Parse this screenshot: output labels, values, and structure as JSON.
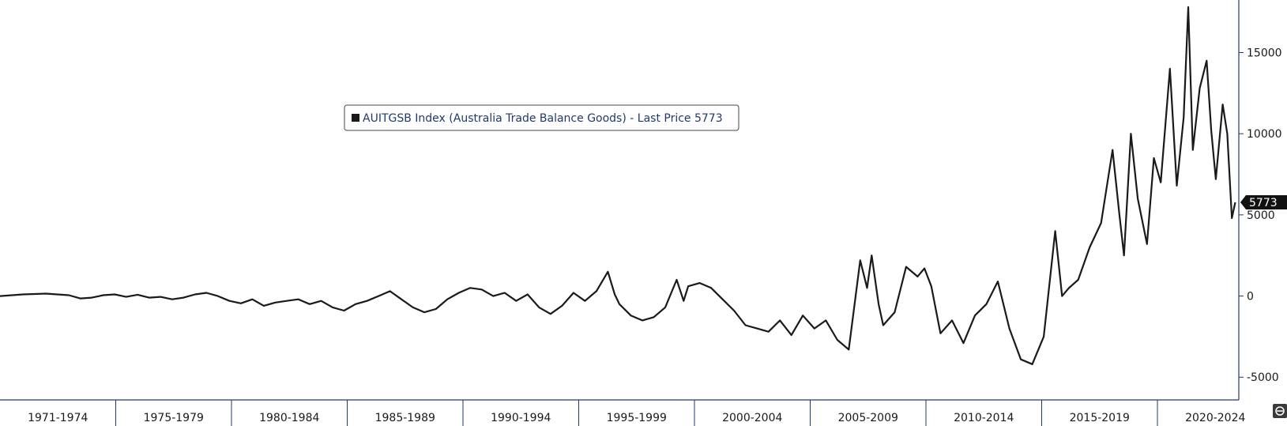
{
  "chart_data": {
    "type": "line",
    "legend": {
      "label": "AUITGSB Index (Australia Trade Balance Goods) - Last Price 5773",
      "placement": "top-center"
    },
    "last_price": 5773,
    "last_price_label": "5773",
    "line_color": "#1a1a1a",
    "accent_color": "#1f3a6b",
    "x_categories": [
      "1971-1974",
      "1975-1979",
      "1980-1984",
      "1985-1989",
      "1990-1994",
      "1995-1999",
      "2000-2004",
      "2005-2009",
      "2010-2014",
      "2015-2019",
      "2020-2024"
    ],
    "xlim": [
      1971.0,
      2024.9
    ],
    "y_ticks": [
      -5000,
      0,
      5000,
      10000,
      15000
    ],
    "y_tick_labels": [
      "-5000",
      "0",
      "5000",
      "10000",
      "15000"
    ],
    "ylim": [
      -6400,
      17800
    ],
    "grid": false,
    "series": [
      {
        "values": [
          [
            1971.0,
            0
          ],
          [
            1972.0,
            100
          ],
          [
            1973.0,
            150
          ],
          [
            1974.0,
            50
          ],
          [
            1974.5,
            -150
          ],
          [
            1975.0,
            -100
          ],
          [
            1975.5,
            50
          ],
          [
            1976.0,
            100
          ],
          [
            1976.5,
            -50
          ],
          [
            1977.0,
            80
          ],
          [
            1977.5,
            -100
          ],
          [
            1978.0,
            -50
          ],
          [
            1978.5,
            -200
          ],
          [
            1979.0,
            -100
          ],
          [
            1979.5,
            100
          ],
          [
            1980.0,
            200
          ],
          [
            1980.5,
            0
          ],
          [
            1981.0,
            -300
          ],
          [
            1981.5,
            -450
          ],
          [
            1982.0,
            -200
          ],
          [
            1982.5,
            -600
          ],
          [
            1983.0,
            -400
          ],
          [
            1983.5,
            -300
          ],
          [
            1984.0,
            -200
          ],
          [
            1984.5,
            -500
          ],
          [
            1985.0,
            -300
          ],
          [
            1985.5,
            -700
          ],
          [
            1986.0,
            -900
          ],
          [
            1986.5,
            -500
          ],
          [
            1987.0,
            -300
          ],
          [
            1987.5,
            0
          ],
          [
            1988.0,
            300
          ],
          [
            1988.5,
            -200
          ],
          [
            1989.0,
            -700
          ],
          [
            1989.5,
            -1000
          ],
          [
            1990.0,
            -800
          ],
          [
            1990.5,
            -200
          ],
          [
            1991.0,
            200
          ],
          [
            1991.5,
            500
          ],
          [
            1992.0,
            400
          ],
          [
            1992.5,
            0
          ],
          [
            1993.0,
            200
          ],
          [
            1993.5,
            -300
          ],
          [
            1994.0,
            100
          ],
          [
            1994.5,
            -700
          ],
          [
            1995.0,
            -1100
          ],
          [
            1995.5,
            -600
          ],
          [
            1996.0,
            200
          ],
          [
            1996.5,
            -300
          ],
          [
            1997.0,
            300
          ],
          [
            1997.5,
            1500
          ],
          [
            1997.8,
            100
          ],
          [
            1998.0,
            -500
          ],
          [
            1998.5,
            -1200
          ],
          [
            1999.0,
            -1500
          ],
          [
            1999.5,
            -1300
          ],
          [
            2000.0,
            -700
          ],
          [
            2000.5,
            1000
          ],
          [
            2000.8,
            -300
          ],
          [
            2001.0,
            600
          ],
          [
            2001.5,
            800
          ],
          [
            2002.0,
            500
          ],
          [
            2002.5,
            -200
          ],
          [
            2003.0,
            -900
          ],
          [
            2003.5,
            -1800
          ],
          [
            2004.0,
            -2000
          ],
          [
            2004.5,
            -2200
          ],
          [
            2005.0,
            -1500
          ],
          [
            2005.5,
            -2400
          ],
          [
            2006.0,
            -1200
          ],
          [
            2006.5,
            -2000
          ],
          [
            2007.0,
            -1500
          ],
          [
            2007.5,
            -2700
          ],
          [
            2008.0,
            -3300
          ],
          [
            2008.5,
            2200
          ],
          [
            2008.8,
            500
          ],
          [
            2009.0,
            2500
          ],
          [
            2009.3,
            -500
          ],
          [
            2009.5,
            -1800
          ],
          [
            2010.0,
            -1000
          ],
          [
            2010.5,
            1800
          ],
          [
            2011.0,
            1200
          ],
          [
            2011.3,
            1700
          ],
          [
            2011.6,
            600
          ],
          [
            2012.0,
            -2300
          ],
          [
            2012.5,
            -1500
          ],
          [
            2013.0,
            -2900
          ],
          [
            2013.5,
            -1200
          ],
          [
            2014.0,
            -500
          ],
          [
            2014.5,
            900
          ],
          [
            2015.0,
            -2000
          ],
          [
            2015.5,
            -3900
          ],
          [
            2016.0,
            -4200
          ],
          [
            2016.5,
            -2500
          ],
          [
            2017.0,
            4000
          ],
          [
            2017.3,
            0
          ],
          [
            2017.6,
            500
          ],
          [
            2018.0,
            1000
          ],
          [
            2018.5,
            3000
          ],
          [
            2019.0,
            4500
          ],
          [
            2019.5,
            9000
          ],
          [
            2019.8,
            5000
          ],
          [
            2020.0,
            2500
          ],
          [
            2020.3,
            10000
          ],
          [
            2020.6,
            6000
          ],
          [
            2021.0,
            3200
          ],
          [
            2021.3,
            8500
          ],
          [
            2021.6,
            7000
          ],
          [
            2022.0,
            14000
          ],
          [
            2022.3,
            6800
          ],
          [
            2022.6,
            11000
          ],
          [
            2022.8,
            17800
          ],
          [
            2023.0,
            9000
          ],
          [
            2023.3,
            12800
          ],
          [
            2023.6,
            14500
          ],
          [
            2023.8,
            10200
          ],
          [
            2024.0,
            7200
          ],
          [
            2024.3,
            11800
          ],
          [
            2024.5,
            10000
          ],
          [
            2024.7,
            4800
          ],
          [
            2024.85,
            5773
          ]
        ]
      }
    ]
  }
}
